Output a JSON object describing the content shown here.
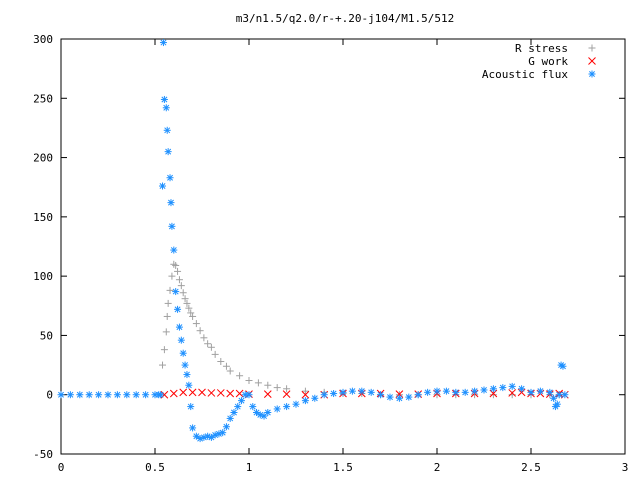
{
  "chart_data": {
    "type": "scatter",
    "title": "m3/n1.5/q2.0/r-+.20-j104/M1.5/512",
    "xlabel": "",
    "ylabel": "",
    "xlim": [
      0,
      3
    ],
    "ylim": [
      -50,
      300
    ],
    "x_ticks": [
      "0",
      "0.5",
      "1",
      "1.5",
      "2",
      "2.5",
      "3"
    ],
    "y_ticks": [
      "-50",
      "0",
      "50",
      "100",
      "150",
      "200",
      "250",
      "300"
    ],
    "grid": false,
    "legend_position": "top-right",
    "series": [
      {
        "name": "R stress",
        "marker": "+",
        "color": "#a0a0a0",
        "x": [
          0.54,
          0.55,
          0.56,
          0.565,
          0.57,
          0.58,
          0.59,
          0.6,
          0.61,
          0.62,
          0.63,
          0.64,
          0.65,
          0.66,
          0.67,
          0.68,
          0.69,
          0.7,
          0.72,
          0.74,
          0.76,
          0.78,
          0.8,
          0.82,
          0.85,
          0.88,
          0.9,
          0.95,
          1.0,
          1.05,
          1.1,
          1.15,
          1.2,
          1.3,
          1.4,
          1.5,
          1.6,
          1.7,
          1.8,
          1.9,
          2.0,
          2.1,
          2.2,
          2.3,
          2.4,
          2.5,
          2.6,
          2.65
        ],
        "y": [
          25,
          38,
          53,
          66,
          77,
          88,
          100,
          110,
          109,
          104,
          97,
          92,
          86,
          81,
          77,
          73,
          69,
          66,
          60,
          54,
          48,
          43,
          40,
          34,
          28,
          24,
          20,
          16,
          12,
          10,
          8,
          6,
          5,
          3,
          2,
          1,
          1,
          0,
          0,
          0,
          0,
          0,
          0,
          0,
          0,
          0,
          0,
          0
        ]
      },
      {
        "name": "G work",
        "marker": "x",
        "color": "#ff0000",
        "x": [
          0.55,
          0.6,
          0.65,
          0.7,
          0.75,
          0.8,
          0.85,
          0.9,
          0.95,
          1.0,
          1.1,
          1.2,
          1.3,
          1.4,
          1.5,
          1.6,
          1.7,
          1.8,
          1.9,
          2.0,
          2.1,
          2.2,
          2.3,
          2.4,
          2.45,
          2.5,
          2.55,
          2.6,
          2.65,
          2.68
        ],
        "y": [
          0,
          1,
          2,
          2,
          2,
          1.5,
          1.5,
          1,
          1,
          0.5,
          0.5,
          0.5,
          0,
          0,
          1,
          1,
          1,
          0.5,
          0.5,
          1,
          1,
          1,
          1,
          1.5,
          2,
          1,
          1,
          0.5,
          1,
          0
        ]
      },
      {
        "name": "Acoustic flux",
        "marker": "*",
        "color": "#1e90ff",
        "x": [
          0,
          0.05,
          0.1,
          0.15,
          0.2,
          0.25,
          0.3,
          0.35,
          0.4,
          0.45,
          0.5,
          0.52,
          0.53,
          0.54,
          0.545,
          0.55,
          0.56,
          0.565,
          0.57,
          0.58,
          0.585,
          0.59,
          0.6,
          0.61,
          0.62,
          0.63,
          0.64,
          0.65,
          0.66,
          0.67,
          0.68,
          0.69,
          0.7,
          0.72,
          0.74,
          0.76,
          0.78,
          0.8,
          0.82,
          0.84,
          0.86,
          0.88,
          0.9,
          0.92,
          0.94,
          0.96,
          0.98,
          1.0,
          1.02,
          1.04,
          1.06,
          1.08,
          1.1,
          1.15,
          1.2,
          1.25,
          1.3,
          1.35,
          1.4,
          1.45,
          1.5,
          1.55,
          1.6,
          1.65,
          1.7,
          1.75,
          1.8,
          1.85,
          1.9,
          1.95,
          2.0,
          2.05,
          2.1,
          2.15,
          2.2,
          2.25,
          2.3,
          2.35,
          2.4,
          2.45,
          2.5,
          2.55,
          2.6,
          2.62,
          2.63,
          2.64,
          2.65,
          2.66,
          2.67,
          2.68
        ],
        "y": [
          0,
          0,
          0,
          0,
          0,
          0,
          0,
          0,
          0,
          0,
          0,
          0,
          0,
          176,
          297,
          249,
          242,
          223,
          205,
          183,
          162,
          142,
          122,
          87,
          72,
          57,
          46,
          35,
          25,
          17,
          8,
          -10,
          -28,
          -35,
          -37,
          -36,
          -35,
          -36,
          -34,
          -33,
          -32,
          -27,
          -20,
          -15,
          -10,
          -5,
          0,
          0,
          -10,
          -15,
          -17,
          -18,
          -15,
          -12,
          -10,
          -8,
          -5,
          -3,
          0,
          1,
          2,
          3,
          3,
          2,
          0,
          -2,
          -3,
          -2,
          0,
          2,
          3,
          3,
          2,
          2,
          3,
          4,
          5,
          6,
          7,
          5,
          2,
          3,
          2,
          -3,
          -10,
          -8,
          0,
          25,
          24,
          0
        ]
      }
    ]
  }
}
